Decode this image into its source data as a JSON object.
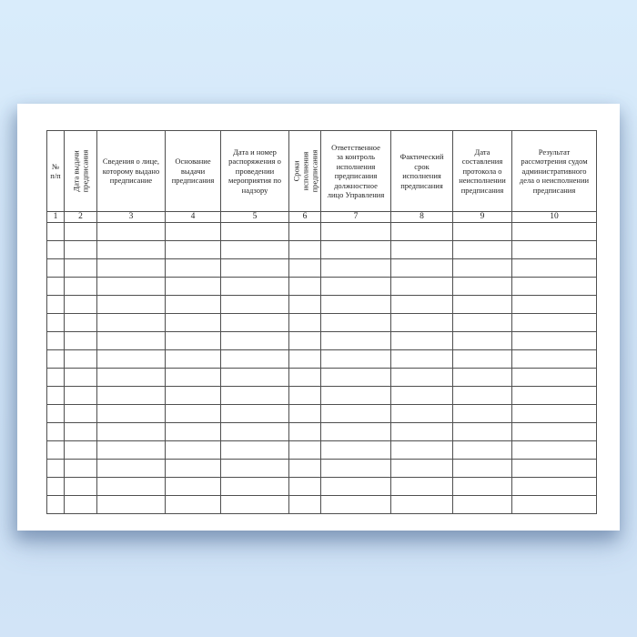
{
  "page": {
    "background_color_top": "#d9ecfb",
    "background_color_bottom": "#cde1f5",
    "sheet_color": "#ffffff",
    "table_border_color": "#4f4f4f"
  },
  "table": {
    "empty_row_count": 16,
    "columns": [
      {
        "num": "1",
        "label": "№\nп/п",
        "orientation": "horizontal"
      },
      {
        "num": "2",
        "label": "Дата выдачи\nпредписания",
        "orientation": "vertical"
      },
      {
        "num": "3",
        "label": "Сведения о лице,\nкоторому выдано\nпредписание",
        "orientation": "horizontal"
      },
      {
        "num": "4",
        "label": "Основание\nвыдачи\nпредписания",
        "orientation": "horizontal"
      },
      {
        "num": "5",
        "label": "Дата и номер\nраспоряжения о\nпроведении\nмероприятия по\nнадзору",
        "orientation": "horizontal"
      },
      {
        "num": "6",
        "label": "Сроки\nисполнения\nпредписания",
        "orientation": "vertical"
      },
      {
        "num": "7",
        "label": "Ответственное\nза контроль\nисполнения\nпредписания\nдолжностное\nлицо Управления",
        "orientation": "horizontal"
      },
      {
        "num": "8",
        "label": "Фактический\nсрок\nисполнения\nпредписания",
        "orientation": "horizontal"
      },
      {
        "num": "9",
        "label": "Дата\nсоставления\nпротокола о\nнеисполнении\nпредписания",
        "orientation": "horizontal"
      },
      {
        "num": "10",
        "label": "Результат\nрассмотрения судом\nадминистративного\nдела о неисполнении\nпредписания",
        "orientation": "horizontal"
      }
    ]
  }
}
